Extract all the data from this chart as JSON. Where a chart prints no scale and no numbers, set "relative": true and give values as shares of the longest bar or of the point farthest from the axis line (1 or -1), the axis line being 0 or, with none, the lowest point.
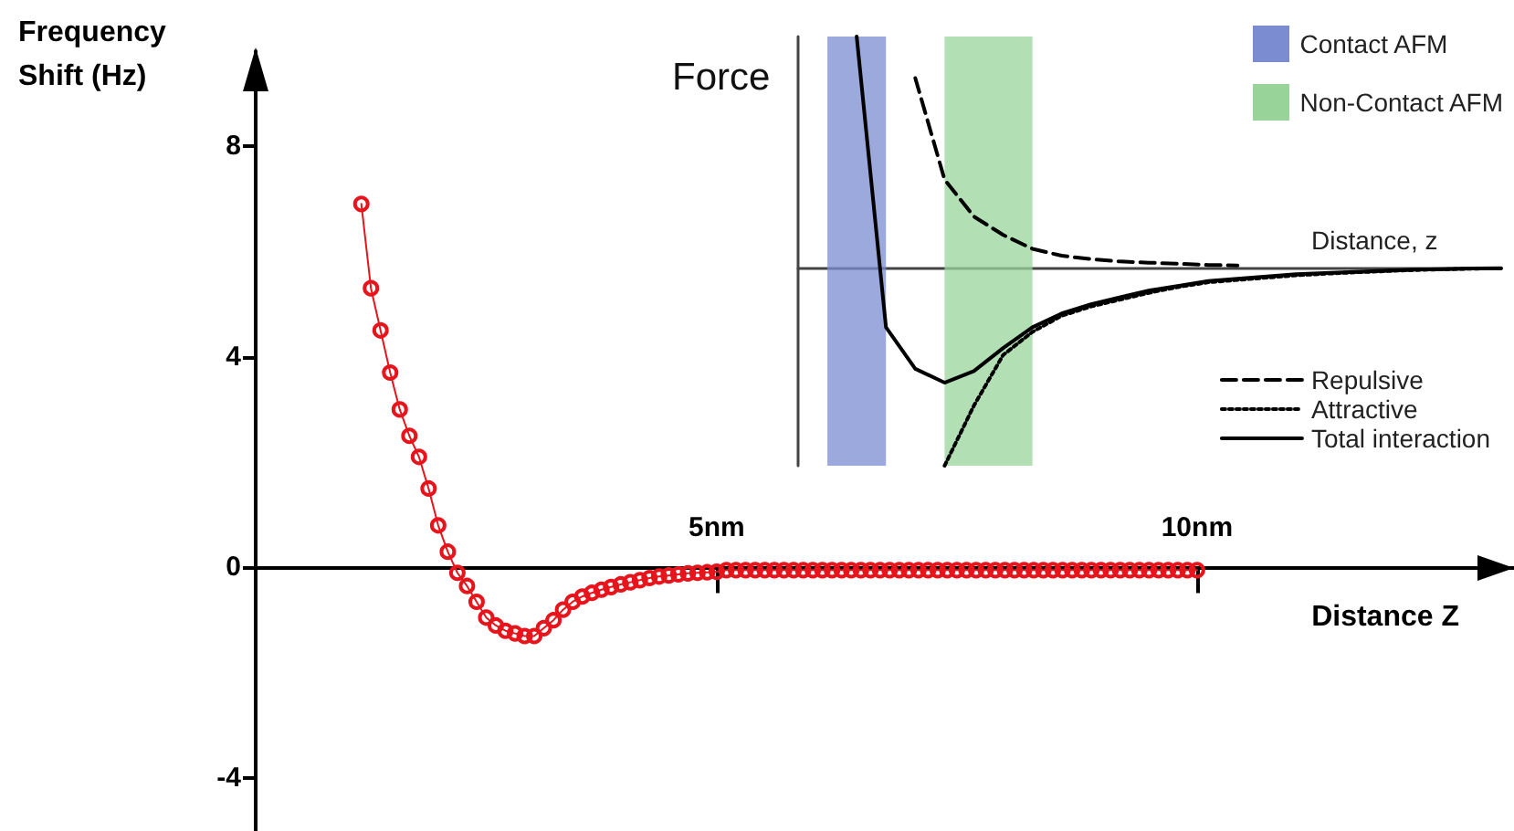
{
  "chart_data": [
    {
      "type": "line",
      "xlabel": "Distance Z",
      "ylabel": "Frequency Shift (Hz)",
      "marker": "circle",
      "grid": false,
      "legend": false,
      "x": [
        1.3,
        1.4,
        1.5,
        1.6,
        1.7,
        1.8,
        1.9,
        2.0,
        2.1,
        2.2,
        2.3,
        2.4,
        2.5,
        2.6,
        2.7,
        2.8,
        2.9,
        3.0,
        3.1,
        3.2,
        3.3,
        3.4,
        3.5,
        3.6,
        3.7,
        3.8,
        3.9,
        4.0,
        4.1,
        4.2,
        4.3,
        4.4,
        4.5,
        4.6,
        4.7,
        4.8,
        4.9,
        5.0,
        5.1,
        5.2,
        5.3,
        5.4,
        5.5,
        5.6,
        5.7,
        5.8,
        5.9,
        6.0,
        6.1,
        6.2,
        6.3,
        6.4,
        6.5,
        6.6,
        6.7,
        6.8,
        6.9,
        7.0,
        7.1,
        7.2,
        7.3,
        7.4,
        7.5,
        7.6,
        7.7,
        7.8,
        7.9,
        8.0,
        8.1,
        8.2,
        8.3,
        8.4,
        8.5,
        8.6,
        8.7,
        8.8,
        8.9,
        9.0,
        9.1,
        9.2,
        9.3,
        9.4,
        9.5,
        9.6,
        9.7,
        9.8,
        9.9,
        10.0
      ],
      "series": [
        {
          "color": "#e8141c",
          "values": [
            6.9,
            5.3,
            4.5,
            3.7,
            3.0,
            2.5,
            2.1,
            1.5,
            0.8,
            0.3,
            -0.1,
            -0.35,
            -0.65,
            -0.95,
            -1.1,
            -1.2,
            -1.25,
            -1.3,
            -1.3,
            -1.15,
            -1.0,
            -0.8,
            -0.65,
            -0.55,
            -0.48,
            -0.42,
            -0.37,
            -0.32,
            -0.28,
            -0.24,
            -0.2,
            -0.17,
            -0.15,
            -0.13,
            -0.11,
            -0.1,
            -0.09,
            -0.08,
            -0.05,
            -0.05,
            -0.05,
            -0.05,
            -0.05,
            -0.05,
            -0.05,
            -0.05,
            -0.05,
            -0.05,
            -0.05,
            -0.05,
            -0.05,
            -0.05,
            -0.05,
            -0.05,
            -0.05,
            -0.05,
            -0.05,
            -0.05,
            -0.05,
            -0.05,
            -0.05,
            -0.05,
            -0.05,
            -0.05,
            -0.05,
            -0.05,
            -0.05,
            -0.05,
            -0.05,
            -0.05,
            -0.05,
            -0.05,
            -0.05,
            -0.05,
            -0.05,
            -0.05,
            -0.05,
            -0.05,
            -0.05,
            -0.05,
            -0.05,
            -0.05,
            -0.05,
            -0.05,
            -0.05,
            -0.05,
            -0.05,
            -0.05
          ]
        }
      ],
      "xlim": [
        0.2,
        13.3
      ],
      "ylim": [
        -5,
        9.8
      ],
      "xticks": [
        {
          "value": 5,
          "label": "5nm"
        },
        {
          "value": 10,
          "label": "10nm"
        }
      ],
      "yticks": [
        8,
        4,
        0,
        -4
      ]
    },
    {
      "type": "line",
      "xlabel": "Distance, z",
      "ylabel": "Force",
      "relative": true,
      "marker": "none",
      "grid": false,
      "legend": "bottom right",
      "categories": [
        null,
        null,
        null,
        null,
        null,
        null,
        null,
        null,
        null,
        null,
        null,
        null,
        null,
        null,
        null,
        null,
        null,
        null,
        null,
        null,
        null,
        null,
        null,
        null,
        null
      ],
      "series": [
        {
          "name": "Repulsive",
          "color": "#000000",
          "line_style": "dashed",
          "values": [
            null,
            null,
            null,
            null,
            0.82,
            0.38,
            0.22,
            0.14,
            0.08,
            0.05,
            0.035,
            0.025,
            0.02,
            0.015,
            0.01,
            0.008,
            null,
            null,
            null,
            null,
            null,
            null,
            null,
            null,
            null
          ]
        },
        {
          "name": "Attractive",
          "color": "#000000",
          "line_style": "dotted",
          "values": [
            null,
            null,
            null,
            null,
            null,
            -0.86,
            -0.6,
            -0.38,
            -0.28,
            -0.21,
            -0.17,
            -0.14,
            -0.11,
            -0.085,
            -0.065,
            -0.055,
            -0.045,
            -0.035,
            -0.028,
            -0.022,
            -0.017,
            -0.012,
            -0.009,
            -0.006,
            -0.005
          ]
        },
        {
          "name": "Total interaction",
          "color": "#000000",
          "line_style": "solid",
          "values": [
            null,
            null,
            1.0,
            -0.26,
            -0.44,
            -0.5,
            -0.45,
            -0.35,
            -0.26,
            -0.2,
            -0.16,
            -0.13,
            -0.1,
            -0.08,
            -0.06,
            -0.05,
            -0.04,
            -0.03,
            -0.025,
            -0.02,
            -0.015,
            -0.01,
            -0.008,
            -0.005,
            -0.004
          ]
        }
      ],
      "annotations": [
        "Contact AFM",
        "Non-Contact AFM"
      ]
    }
  ]
}
